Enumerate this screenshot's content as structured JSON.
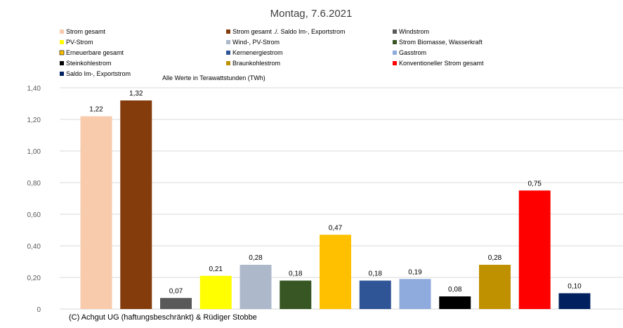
{
  "chart_data": {
    "type": "bar",
    "title": "Montag, 7.6.2021",
    "subtitle": "Alle Werte in Terawattstunden (TWh)",
    "copyright": "(C) Achgut UG (haftungsbeschränkt) & Rüdiger Stobbe",
    "ylim": [
      0,
      1.4
    ],
    "yticks": [
      "0",
      "0,20",
      "0,40",
      "0,60",
      "0,80",
      "1,00",
      "1,20",
      "1,40"
    ],
    "grid": true,
    "legend_position": "top",
    "categories": [
      "Strom gesamt",
      "Strom gesamt ./. Saldo Im-, Exportstrom",
      "Windstrom",
      "PV-Strom",
      "Wind-, PV-Strom",
      "Strom Biomasse, Wasserkraft",
      "Erneuerbare gesamt",
      "Kernenergiestrom",
      "Gasstrom",
      "Steinkohlestrom",
      "Braunkohlestrom",
      "Konventioneller Strom gesamt",
      "Saldo Im-, Exportstrom"
    ],
    "values": [
      1.22,
      1.32,
      0.07,
      0.21,
      0.28,
      0.18,
      0.47,
      0.18,
      0.19,
      0.08,
      0.28,
      0.75,
      0.1
    ],
    "value_labels": [
      "1,22",
      "1,32",
      "0,07",
      "0,21",
      "0,28",
      "0,18",
      "0,47",
      "0,18",
      "0,19",
      "0,08",
      "0,28",
      "0,75",
      "0,10"
    ],
    "colors": [
      "#f8cbad",
      "#843c0c",
      "#595959",
      "#ffff00",
      "#adb9ca",
      "#375623",
      "#ffc000",
      "#2f5597",
      "#8faadc",
      "#000000",
      "#bf9000",
      "#ff0000",
      "#002060"
    ]
  }
}
